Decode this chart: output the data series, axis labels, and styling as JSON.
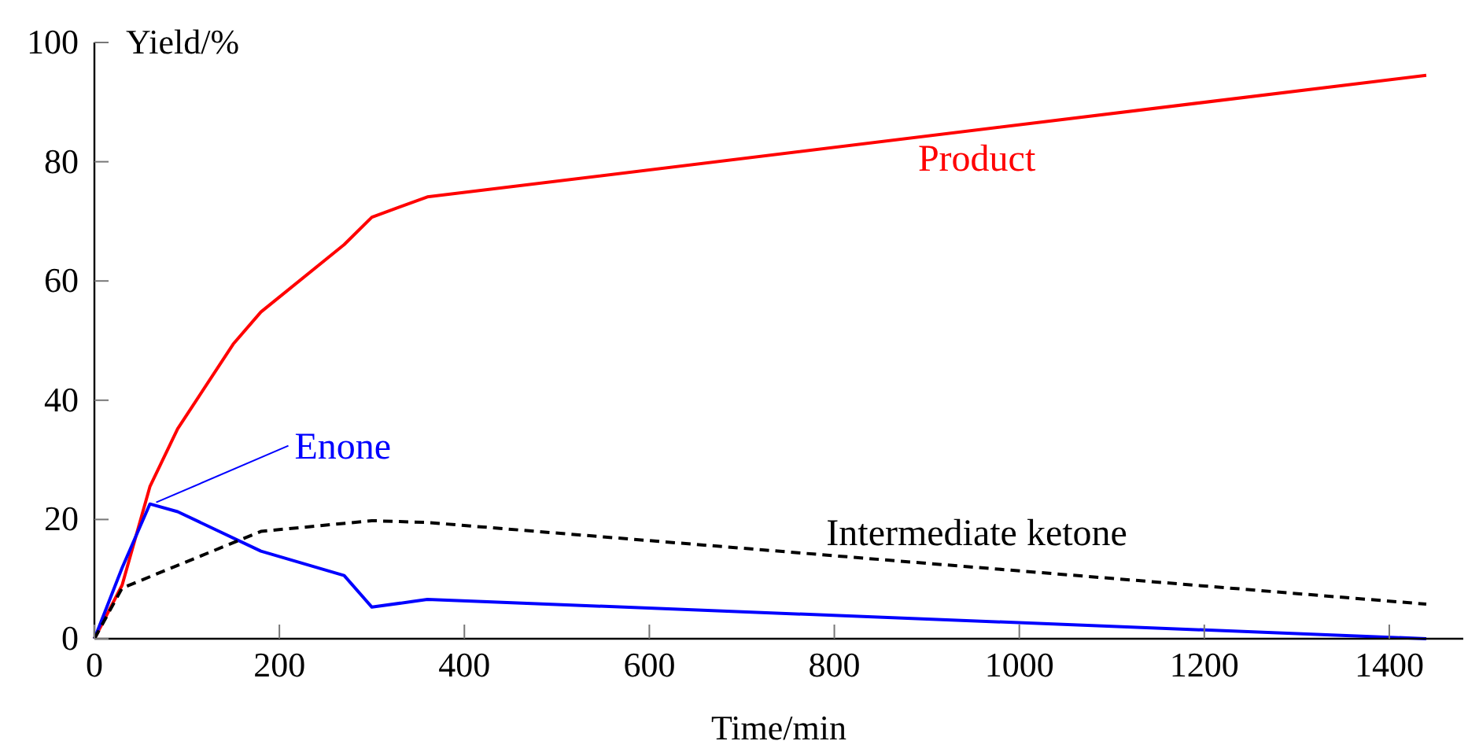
{
  "chart_data": {
    "type": "line",
    "xlabel": "Time/min",
    "ylabel": "Yield/%",
    "xlim": [
      0,
      1480
    ],
    "ylim": [
      0,
      100
    ],
    "xticks": [
      0,
      200,
      400,
      600,
      800,
      1000,
      1200,
      1400
    ],
    "yticks": [
      0,
      20,
      40,
      60,
      80,
      100
    ],
    "grid": false,
    "series": [
      {
        "name": "Product",
        "color": "#ff0000",
        "line_style": "solid",
        "x": [
          0,
          30,
          60,
          90,
          150,
          180,
          270,
          300,
          360,
          1440
        ],
        "values": [
          0,
          9,
          25.5,
          35.2,
          49.4,
          54.8,
          66.1,
          70.7,
          74.1,
          94.5
        ]
      },
      {
        "name": "Enone",
        "color": "#0000ff",
        "line_style": "solid",
        "x": [
          0,
          30,
          60,
          90,
          180,
          270,
          300,
          360,
          1440
        ],
        "values": [
          0,
          11.9,
          22.6,
          21.3,
          14.7,
          10.6,
          5.3,
          6.6,
          0
        ]
      },
      {
        "name": "Intermediate ketone",
        "color": "#000000",
        "line_style": "dashed",
        "x": [
          0,
          30,
          180,
          300,
          360,
          1440
        ],
        "values": [
          0,
          8.5,
          18,
          19.8,
          19.5,
          5.8
        ]
      }
    ]
  }
}
